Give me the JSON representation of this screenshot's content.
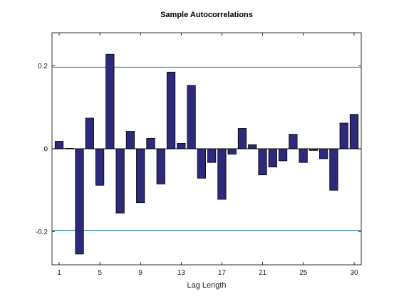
{
  "chart_data": {
    "type": "bar",
    "title": "Sample Autocorrelations",
    "xlabel": "Lag Length",
    "ylabel": "",
    "x": [
      1,
      2,
      3,
      4,
      5,
      6,
      7,
      8,
      9,
      10,
      11,
      12,
      13,
      14,
      15,
      16,
      17,
      18,
      19,
      20,
      21,
      22,
      23,
      24,
      25,
      26,
      27,
      28,
      29,
      30
    ],
    "values": [
      0.018,
      0.001,
      -0.254,
      0.074,
      -0.088,
      0.228,
      -0.155,
      0.042,
      -0.13,
      0.025,
      -0.085,
      0.185,
      0.013,
      0.153,
      -0.071,
      -0.033,
      -0.122,
      -0.013,
      0.049,
      0.01,
      -0.063,
      -0.044,
      -0.029,
      0.035,
      -0.033,
      -0.004,
      -0.024,
      -0.1,
      0.062,
      0.083
    ],
    "xticks": [
      1,
      5,
      9,
      13,
      17,
      21,
      25,
      30
    ],
    "yticks": [
      -0.2,
      0,
      0.2
    ],
    "ytick_labels": [
      "-0.2",
      "0",
      "0.2"
    ],
    "ylim": [
      -0.28,
      0.28
    ],
    "xlim": [
      0.3,
      30.7
    ],
    "confidence_bounds": [
      0.197,
      -0.197
    ],
    "colors": {
      "bar_fill": "#2d2a7c",
      "bar_edge": "#000000",
      "bound_line": "#1f7bb5",
      "zero_line": "#000000"
    }
  }
}
